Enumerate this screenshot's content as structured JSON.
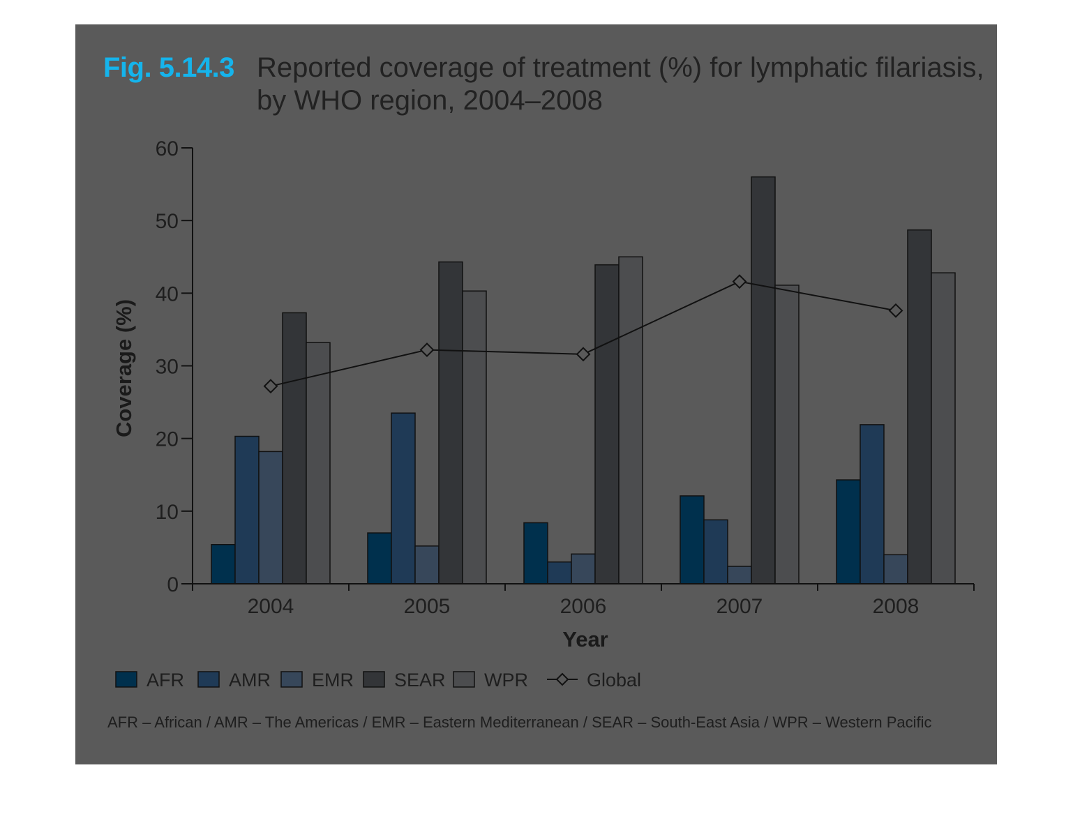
{
  "figure": {
    "number": "Fig. 5.14.3",
    "title_line1": "Reported coverage of treatment (%) for lymphatic filariasis,",
    "title_line2": "by WHO region, 2004–2008",
    "footnote": "AFR – African / AMR – The Americas / EMR – Eastern Mediterranean / SEAR – South-East Asia / WPR – Western Pacific"
  },
  "colors": {
    "background_panel": "#5a5a5a",
    "accent": "#15b4ec",
    "AFR": "#00304d",
    "AMR": "#1f3a56",
    "EMR": "#37475a",
    "SEAR": "#333538",
    "WPR": "#4c4d4f",
    "line": "#111111"
  },
  "chart_data": {
    "type": "bar",
    "title": "Reported coverage of treatment (%) for lymphatic filariasis, by WHO region, 2004–2008",
    "xlabel": "Year",
    "ylabel": "Coverage (%)",
    "ylim": [
      0,
      60
    ],
    "yticks": [
      0,
      10,
      20,
      30,
      40,
      50,
      60
    ],
    "grid": false,
    "legend_position": "bottom",
    "categories": [
      "2004",
      "2005",
      "2006",
      "2007",
      "2008"
    ],
    "series": [
      {
        "name": "AFR",
        "type": "bar",
        "values": [
          5.4,
          7.0,
          8.4,
          12.1,
          14.3
        ]
      },
      {
        "name": "AMR",
        "type": "bar",
        "values": [
          20.3,
          23.5,
          3.0,
          8.8,
          21.9
        ]
      },
      {
        "name": "EMR",
        "type": "bar",
        "values": [
          18.2,
          5.2,
          4.1,
          2.4,
          4.0
        ]
      },
      {
        "name": "SEAR",
        "type": "bar",
        "values": [
          37.3,
          44.3,
          43.9,
          56.0,
          48.7
        ]
      },
      {
        "name": "WPR",
        "type": "bar",
        "values": [
          33.2,
          40.3,
          45.0,
          41.1,
          42.8
        ]
      },
      {
        "name": "Global",
        "type": "line",
        "marker": "diamond",
        "values": [
          27.2,
          32.2,
          31.6,
          41.6,
          37.6
        ]
      }
    ]
  }
}
